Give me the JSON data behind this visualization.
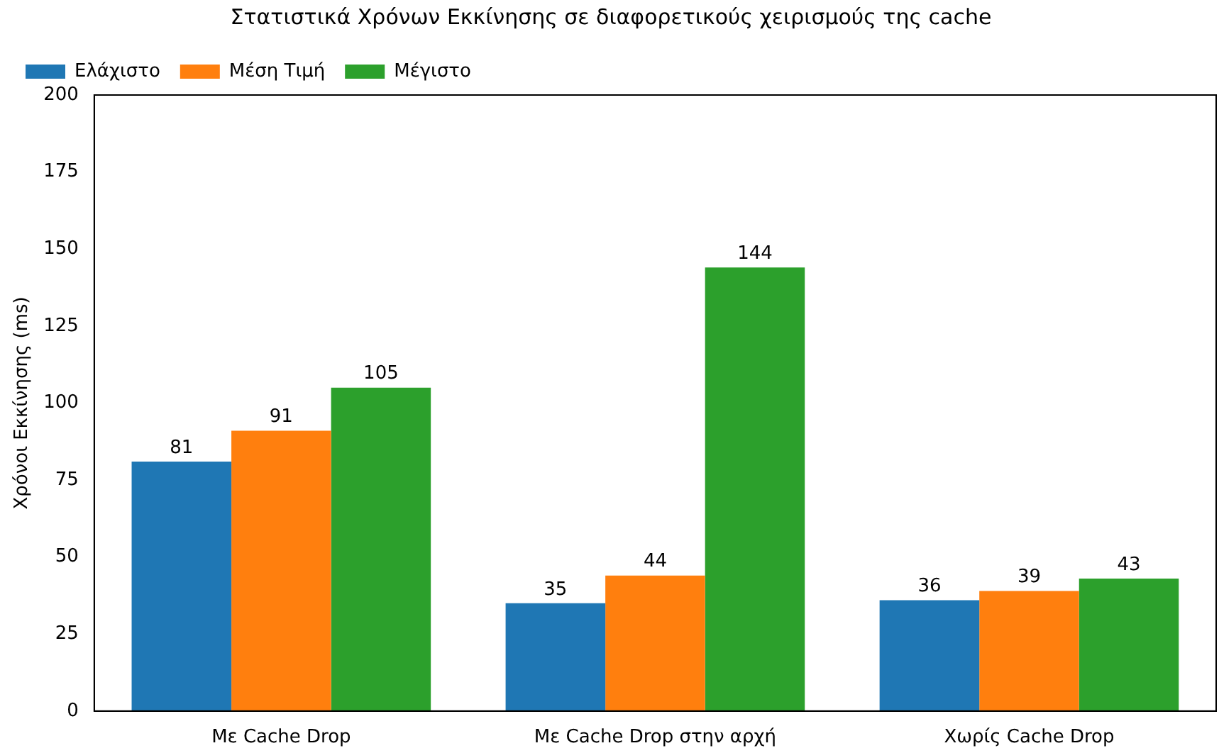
{
  "chart_data": {
    "type": "bar",
    "title": "Στατιστικά Χρόνων Εκκίνησης σε διαφορετικούς χειρισμούς της cache",
    "ylabel": "Χρόνοι Εκκίνησης (ms)",
    "categories": [
      "Με Cache Drop",
      "Με Cache Drop στην αρχή",
      "Χωρίς Cache Drop"
    ],
    "series": [
      {
        "name": "Ελάχιστο",
        "color": "#1f77b4",
        "values": [
          81,
          35,
          36
        ]
      },
      {
        "name": "Μέση Τιμή",
        "color": "#ff7f0e",
        "values": [
          91,
          44,
          39
        ]
      },
      {
        "name": "Μέγιστο",
        "color": "#2ca02c",
        "values": [
          105,
          144,
          43
        ]
      }
    ],
    "ylim": [
      0,
      200
    ],
    "yticks": [
      0,
      25,
      50,
      75,
      100,
      125,
      150,
      175,
      200
    ],
    "grid": false,
    "legend": "top left",
    "data_labels": true
  }
}
